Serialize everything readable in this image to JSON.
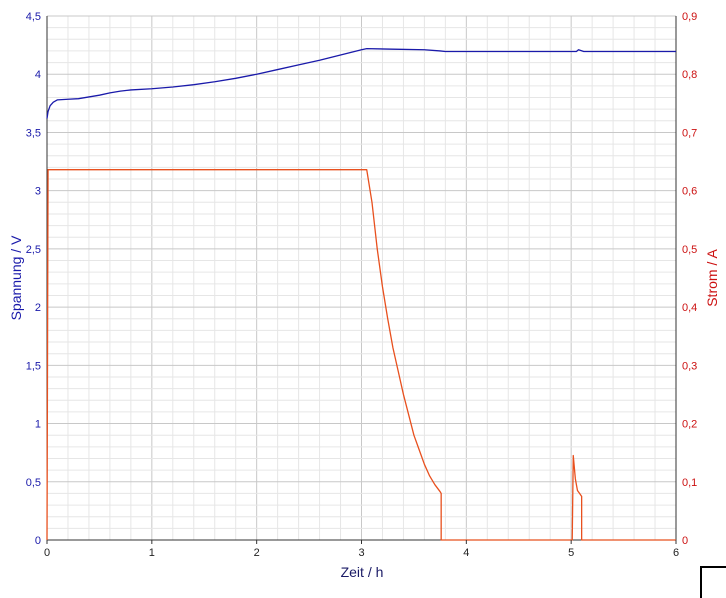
{
  "chart_data": {
    "type": "line",
    "xlabel": "Zeit / h",
    "ylabel": "Spannung / V",
    "y2label": "Strom / A",
    "xlim": [
      0,
      6
    ],
    "ylim": [
      0,
      4.5
    ],
    "y2lim": [
      0,
      0.9
    ],
    "grid": true,
    "x_ticks": [
      "0",
      "1",
      "2",
      "3",
      "4",
      "5",
      "6"
    ],
    "y_ticks": [
      "0",
      "0,5",
      "1",
      "1,5",
      "2",
      "2,5",
      "3",
      "3,5",
      "4",
      "4,5"
    ],
    "y2_ticks": [
      "0",
      "0,1",
      "0,2",
      "0,3",
      "0,4",
      "0,5",
      "0,6",
      "0,7",
      "0,8",
      "0,9"
    ],
    "colors": {
      "voltage": "#1a1aaa",
      "current": "#e8501e",
      "left_axis_text": "#1a1aaa",
      "right_axis_text": "#cc1111",
      "grid": "#d4d4d4"
    },
    "series": [
      {
        "axis": "left",
        "color": "#1a1aaa",
        "points": [
          [
            0,
            3.62
          ],
          [
            0.01,
            3.68
          ],
          [
            0.03,
            3.73
          ],
          [
            0.06,
            3.76
          ],
          [
            0.1,
            3.78
          ],
          [
            0.2,
            3.785
          ],
          [
            0.3,
            3.79
          ],
          [
            0.4,
            3.805
          ],
          [
            0.5,
            3.82
          ],
          [
            0.6,
            3.84
          ],
          [
            0.7,
            3.855
          ],
          [
            0.8,
            3.865
          ],
          [
            1.0,
            3.875
          ],
          [
            1.2,
            3.89
          ],
          [
            1.4,
            3.91
          ],
          [
            1.6,
            3.935
          ],
          [
            1.8,
            3.965
          ],
          [
            2.0,
            4.0
          ],
          [
            2.2,
            4.04
          ],
          [
            2.4,
            4.08
          ],
          [
            2.6,
            4.12
          ],
          [
            2.8,
            4.165
          ],
          [
            3.0,
            4.21
          ],
          [
            3.05,
            4.22
          ],
          [
            3.3,
            4.215
          ],
          [
            3.6,
            4.21
          ],
          [
            3.75,
            4.2
          ],
          [
            3.8,
            4.195
          ],
          [
            4.5,
            4.195
          ],
          [
            5.05,
            4.195
          ],
          [
            5.07,
            4.21
          ],
          [
            5.12,
            4.195
          ],
          [
            6.0,
            4.195
          ]
        ]
      },
      {
        "axis": "right",
        "color": "#e8501e",
        "points": [
          [
            0,
            0
          ],
          [
            0.01,
            0.636
          ],
          [
            1.0,
            0.636
          ],
          [
            2.0,
            0.636
          ],
          [
            3.0,
            0.636
          ],
          [
            3.05,
            0.636
          ],
          [
            3.1,
            0.58
          ],
          [
            3.15,
            0.5
          ],
          [
            3.2,
            0.435
          ],
          [
            3.25,
            0.38
          ],
          [
            3.3,
            0.33
          ],
          [
            3.35,
            0.29
          ],
          [
            3.4,
            0.25
          ],
          [
            3.45,
            0.215
          ],
          [
            3.5,
            0.18
          ],
          [
            3.55,
            0.155
          ],
          [
            3.6,
            0.13
          ],
          [
            3.65,
            0.11
          ],
          [
            3.7,
            0.095
          ],
          [
            3.75,
            0.083
          ],
          [
            3.76,
            0.08
          ],
          [
            3.76,
            0
          ],
          [
            5.0,
            0
          ],
          [
            5.01,
            0
          ],
          [
            5.02,
            0.145
          ],
          [
            5.04,
            0.105
          ],
          [
            5.06,
            0.085
          ],
          [
            5.08,
            0.08
          ],
          [
            5.1,
            0.075
          ],
          [
            5.1,
            0
          ],
          [
            6.0,
            0
          ]
        ]
      }
    ]
  }
}
